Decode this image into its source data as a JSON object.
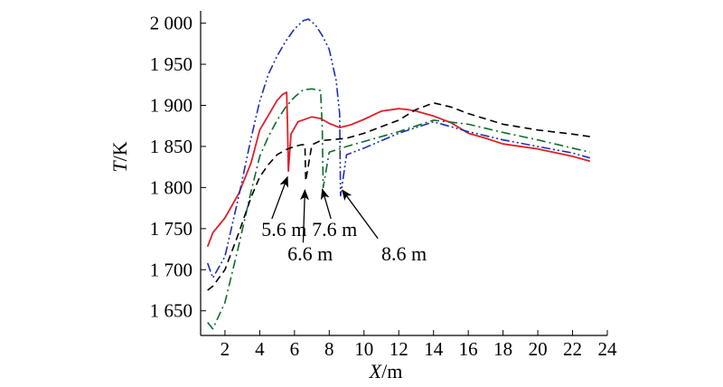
{
  "chart_data": {
    "type": "line",
    "xlabel": {
      "italic": "X",
      "unit": "/m"
    },
    "ylabel": {
      "italic": "T",
      "unit": "/K"
    },
    "xlim": [
      0.6,
      24
    ],
    "ylim": [
      1620,
      2015
    ],
    "xticks": [
      2,
      4,
      6,
      8,
      10,
      12,
      14,
      16,
      18,
      20,
      22,
      24
    ],
    "xtick_labels": [
      "2",
      "4",
      "6",
      "8",
      "10",
      "12",
      "14",
      "16",
      "18",
      "20",
      "22",
      "24"
    ],
    "yticks": [
      1650,
      1700,
      1750,
      1800,
      1850,
      1900,
      1950,
      2000
    ],
    "ytick_labels": [
      "1 650",
      "1 700",
      "1 750",
      "1 800",
      "1 850",
      "1 900",
      "1 950",
      "2 000"
    ],
    "grid": false,
    "series": [
      {
        "color": "#e0202a",
        "dash": "solid",
        "x": [
          1.0,
          1.3,
          2.0,
          2.8,
          3.5,
          4.0,
          4.5,
          5.0,
          5.3,
          5.55,
          5.6,
          5.65,
          5.8,
          6.2,
          7.0,
          7.5,
          8.0,
          8.6,
          9.2,
          10.0,
          11.0,
          12.0,
          12.5,
          13.0,
          13.5,
          14.0,
          15.0,
          16.0,
          17.0,
          18.0,
          20.0,
          22.0,
          23.0
        ],
        "y": [
          1728,
          1745,
          1763,
          1793,
          1830,
          1870,
          1888,
          1906,
          1913,
          1916,
          1873,
          1820,
          1865,
          1880,
          1886,
          1884,
          1878,
          1873,
          1876,
          1883,
          1893,
          1896,
          1895,
          1893,
          1890,
          1887,
          1879,
          1866,
          1860,
          1853,
          1847,
          1838,
          1832
        ]
      },
      {
        "color": "#1f2fb0",
        "dash": "dashdotdot",
        "x": [
          1.0,
          1.3,
          2.0,
          2.8,
          3.5,
          4.0,
          4.5,
          5.0,
          5.5,
          6.0,
          6.5,
          6.8,
          7.2,
          7.6,
          8.0,
          8.4,
          8.6,
          8.65,
          9.0,
          10.0,
          12.0,
          14.0,
          16.0,
          18.0,
          20.0,
          22.0,
          23.0
        ],
        "y": [
          1708,
          1690,
          1716,
          1790,
          1860,
          1905,
          1938,
          1960,
          1978,
          1993,
          2003,
          2005,
          1998,
          1985,
          1968,
          1930,
          1890,
          1790,
          1840,
          1848,
          1866,
          1880,
          1868,
          1858,
          1850,
          1842,
          1836
        ]
      },
      {
        "color": "#0f6b2a",
        "dash": "dashdot",
        "x": [
          1.0,
          1.3,
          2.0,
          2.8,
          3.5,
          4.0,
          4.5,
          5.0,
          5.5,
          6.0,
          6.5,
          7.0,
          7.5,
          7.6,
          7.65,
          8.0,
          9.0,
          10.0,
          12.0,
          14.0,
          16.0,
          18.0,
          20.0,
          22.0,
          23.0
        ],
        "y": [
          1636,
          1628,
          1660,
          1730,
          1795,
          1838,
          1862,
          1882,
          1898,
          1910,
          1919,
          1920,
          1918,
          1872,
          1800,
          1843,
          1850,
          1856,
          1868,
          1882,
          1877,
          1867,
          1858,
          1848,
          1843
        ]
      },
      {
        "color": "#000000",
        "dash": "dashed",
        "x": [
          1.0,
          1.3,
          2.0,
          2.8,
          3.5,
          4.0,
          4.5,
          5.0,
          5.5,
          6.0,
          6.4,
          6.6,
          6.65,
          7.0,
          7.5,
          8.0,
          9.0,
          10.0,
          11.0,
          12.0,
          13.0,
          14.0,
          15.0,
          16.0,
          18.0,
          20.0,
          22.0,
          23.0
        ],
        "y": [
          1675,
          1680,
          1700,
          1745,
          1788,
          1813,
          1828,
          1840,
          1846,
          1850,
          1852,
          1852,
          1808,
          1852,
          1857,
          1858,
          1860,
          1866,
          1874,
          1882,
          1895,
          1903,
          1898,
          1890,
          1877,
          1870,
          1865,
          1862
        ]
      }
    ],
    "annotations": [
      {
        "text": "5.6 m",
        "label_x": 4.1,
        "label_y": 1749,
        "arrow_tip": [
          5.6,
          1813
        ],
        "arrow_tail": [
          4.7,
          1762
        ]
      },
      {
        "text": "6.6 m",
        "label_x": 5.6,
        "label_y": 1719,
        "arrow_tip": [
          6.6,
          1797
        ],
        "arrow_tail": [
          6.5,
          1733
        ]
      },
      {
        "text": "7.6 m",
        "label_x": 7.0,
        "label_y": 1749,
        "arrow_tip": [
          7.6,
          1798
        ],
        "arrow_tail": [
          8.1,
          1762
        ]
      },
      {
        "text": "8.6 m",
        "label_x": 11.0,
        "label_y": 1719,
        "arrow_tip": [
          8.75,
          1797
        ],
        "arrow_tail": [
          10.8,
          1738
        ]
      }
    ]
  }
}
